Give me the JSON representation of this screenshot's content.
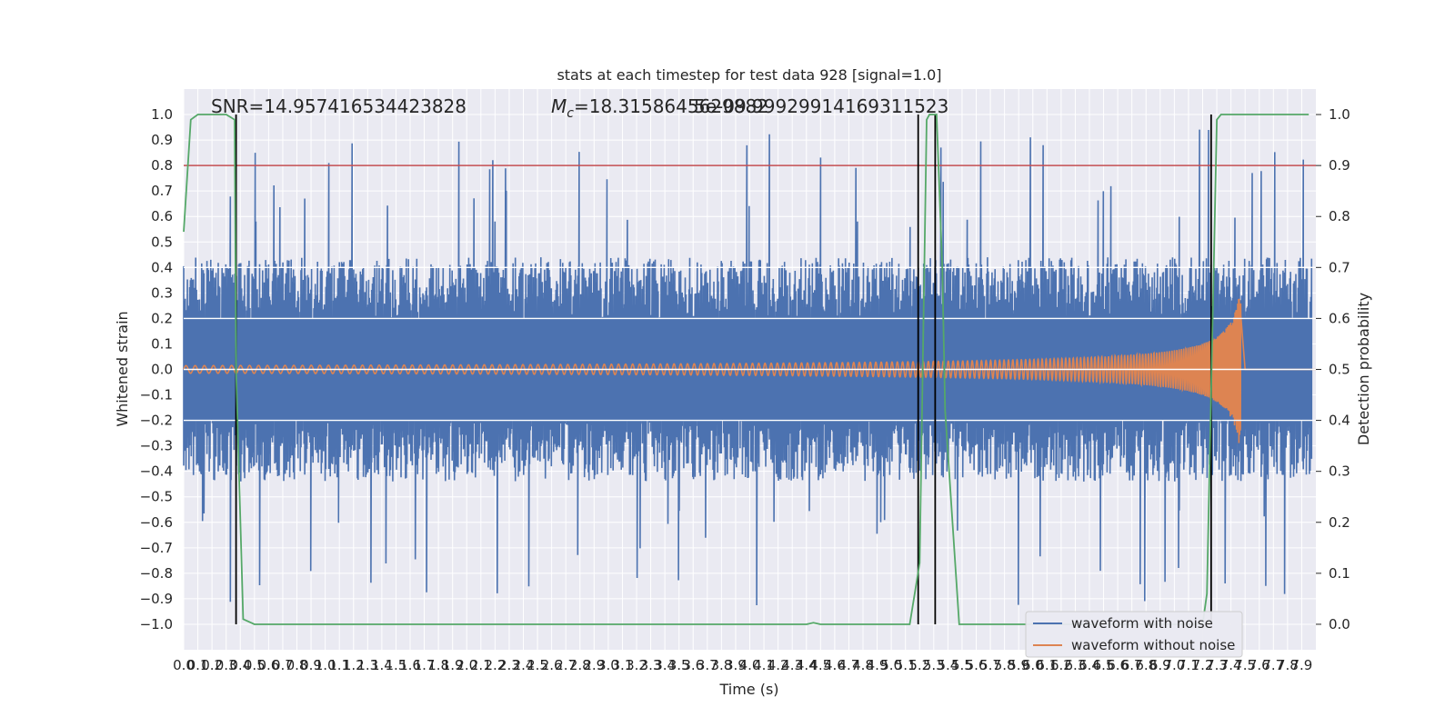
{
  "chart_data": {
    "type": "line",
    "title": "stats at each timestep for test data 928 [signal=1.0]",
    "xlabel": "Time (s)",
    "ylabel": "Whitened strain",
    "ylabel_right": "Detection probability",
    "xlim": [
      0.0,
      8.0
    ],
    "ylim": [
      -1.1,
      1.1
    ],
    "ylim_right": [
      -0.05,
      1.05
    ],
    "grid": true,
    "legend_position": "lower-right",
    "annotations": {
      "snr_text": "SNR=14.957416534423828",
      "mc_prefix": "M",
      "mc_sub": "c",
      "mc_value": "=18.3158645629882",
      "overlap_text": "5e-09.99929914169311523"
    },
    "x_tick_labels": [
      "0.0",
      "0.1",
      "0.2",
      "0.3",
      "0.4",
      "0.5",
      "0.6",
      "0.7",
      "0.8",
      "0.9",
      "1.0",
      "1.1",
      "1.2",
      "1.3",
      "1.4",
      "1.5",
      "1.6",
      "1.7",
      "1.8",
      "1.9",
      "2.0",
      "2.1",
      "2.2",
      "2.3",
      "2.4",
      "2.5",
      "2.6",
      "2.7",
      "2.8",
      "2.9",
      "3.0",
      "3.1",
      "3.2",
      "3.3",
      "3.4",
      "3.5",
      "3.6",
      "3.7",
      "3.8",
      "3.9",
      "4.0",
      "4.1",
      "4.2",
      "4.3",
      "4.4",
      "4.5",
      "4.6",
      "4.7",
      "4.8",
      "4.9",
      "5.0",
      "5.1",
      "5.2",
      "5.3",
      "5.4",
      "5.5",
      "5.6",
      "5.7",
      "5.8",
      "5.9",
      "6.0",
      "6.1",
      "6.2",
      "6.3",
      "6.4",
      "6.5",
      "6.6",
      "6.7",
      "6.8",
      "6.9",
      "7.0",
      "7.1",
      "7.2",
      "7.3",
      "7.4",
      "7.5",
      "7.6",
      "7.7",
      "7.8",
      "7.9"
    ],
    "y_tick_labels": [
      "1.0",
      "0.9",
      "0.8",
      "0.7",
      "0.6",
      "0.5",
      "0.4",
      "0.3",
      "0.2",
      "0.1",
      "0.0",
      "−0.1",
      "−0.2",
      "−0.3",
      "−0.4",
      "−0.5",
      "−0.6",
      "−0.7",
      "−0.8",
      "−0.9",
      "−1.0"
    ],
    "y_right_tick_labels": [
      "1.0",
      "0.9",
      "0.8",
      "0.7",
      "0.6",
      "0.5",
      "0.4",
      "0.3",
      "0.2",
      "0.1",
      "0.0"
    ],
    "series": [
      {
        "name": "waveform with noise",
        "color": "#4c72b0",
        "envelope": {
          "typical_amplitude": 0.4,
          "peak_high": 0.96,
          "peak_low": -1.0
        }
      },
      {
        "name": "waveform without noise",
        "color": "#dd8452",
        "chirp": {
          "start_amplitude": 0.015,
          "peak_amplitude": 0.57,
          "peak_time": 7.47,
          "end_time": 7.5
        }
      }
    ],
    "detection_probability": {
      "color": "#55a868",
      "points": [
        [
          0.0,
          0.77
        ],
        [
          0.05,
          0.99
        ],
        [
          0.1,
          1.0
        ],
        [
          0.3,
          1.0
        ],
        [
          0.36,
          0.99
        ],
        [
          0.37,
          0.5
        ],
        [
          0.42,
          0.01
        ],
        [
          0.5,
          0.0
        ],
        [
          4.4,
          0.0
        ],
        [
          4.45,
          0.003
        ],
        [
          4.5,
          0.0
        ],
        [
          5.13,
          0.0
        ],
        [
          5.2,
          0.12
        ],
        [
          5.25,
          0.99
        ],
        [
          5.27,
          1.0
        ],
        [
          5.32,
          1.0
        ],
        [
          5.36,
          0.7
        ],
        [
          5.38,
          0.42
        ],
        [
          5.48,
          0.0
        ],
        [
          7.2,
          0.0
        ],
        [
          7.23,
          0.06
        ],
        [
          7.3,
          0.99
        ],
        [
          7.33,
          1.0
        ],
        [
          7.95,
          1.0
        ]
      ]
    },
    "threshold_line": {
      "color": "#c44e52",
      "value_right": 0.9
    },
    "vertical_markers": {
      "color": "#000000",
      "x": [
        0.37,
        5.19,
        5.31,
        7.26
      ]
    },
    "horizontal_white_lines_right": [
      0.7,
      0.6,
      0.5,
      0.4
    ]
  }
}
